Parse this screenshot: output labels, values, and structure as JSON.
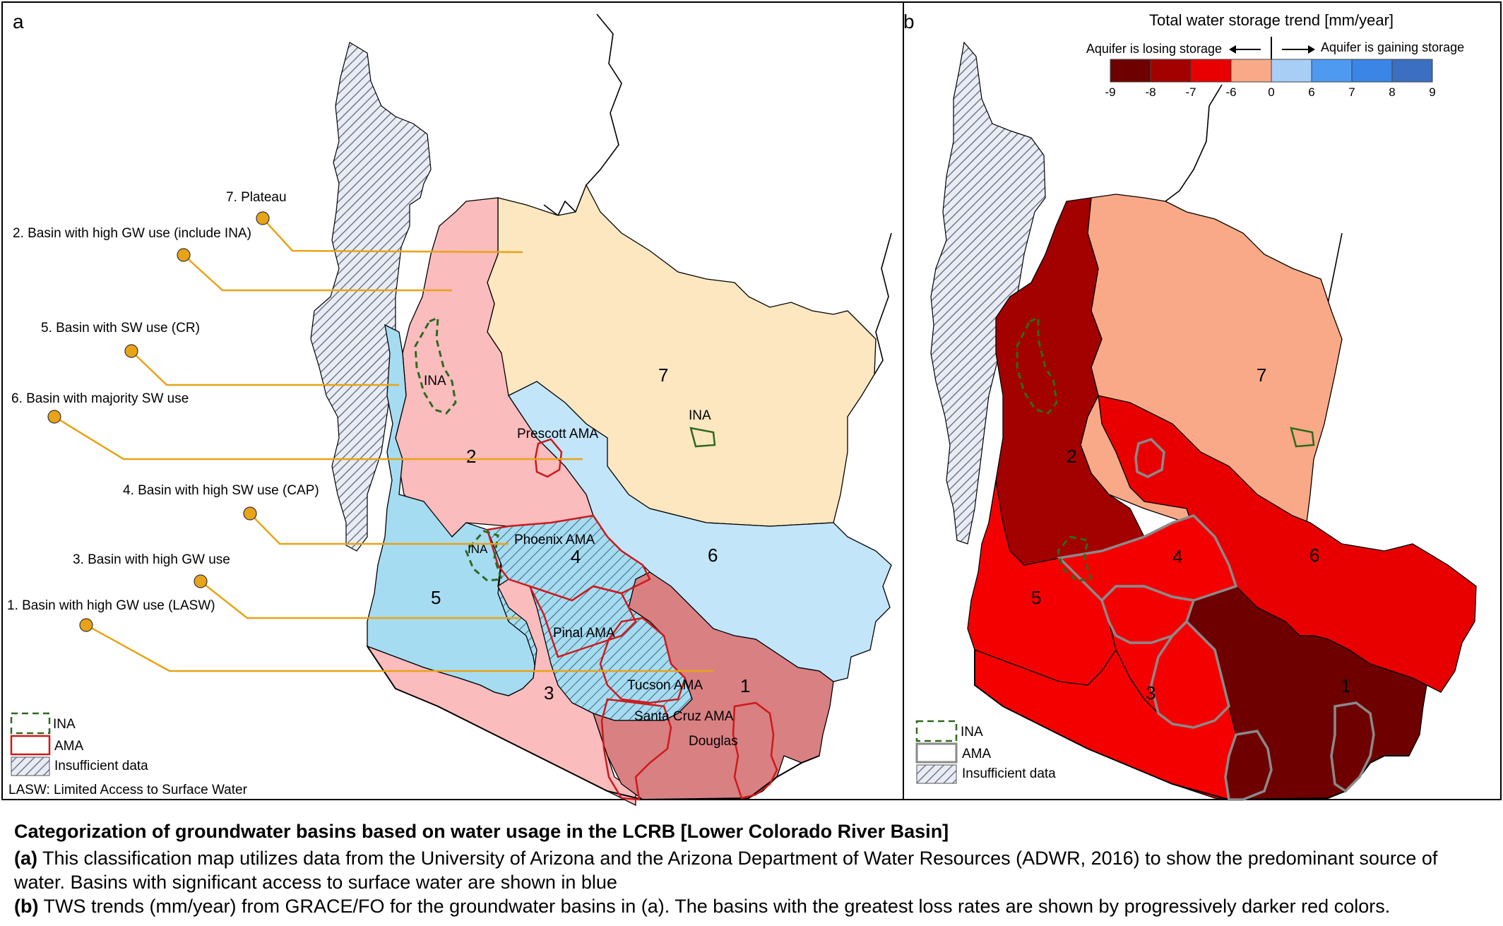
{
  "panel_a": {
    "label": "a",
    "legend_lines": [
      "7. Plateau",
      "2. Basin with high GW use (include INA)",
      "5. Basin with SW use (CR)",
      "6. Basin with majority SW use",
      "4. Basin with high SW use (CAP)",
      "3. Basin with high GW use",
      "1. Basin with high GW use (LASW)"
    ],
    "basin_numbers": [
      "7",
      "2",
      "6",
      "4",
      "5",
      "3",
      "1"
    ],
    "area_labels": {
      "ina_north": "INA",
      "ina_east": "INA",
      "ina_south": "INA",
      "prescott": "Prescott AMA",
      "phoenix": "Phoenix AMA",
      "pinal": "Pinal AMA",
      "tucson": "Tucson AMA",
      "santa_cruz": "Santa Cruz AMA",
      "douglas": "Douglas"
    },
    "key": {
      "ina": "INA",
      "ama": "AMA",
      "insufficient": "Insufficient data",
      "lasw": "LASW: Limited Access to Surface Water"
    },
    "colors": {
      "plateau": "#fde7c0",
      "basin2": "#fbbcbe",
      "basin3": "#fbbcbe",
      "basin1": "#d98083",
      "basin6": "#c2e5fa",
      "basin5": "#a6dcf2",
      "basin4": "#a6dcf2",
      "leader": "#e8a317",
      "ama_outline": "#cc1a1a",
      "ina_outline": "#2d6a1f"
    }
  },
  "panel_b": {
    "label": "b",
    "colorbar": {
      "title": "Total water storage trend [mm/year]",
      "left_note": "Aquifer is losing storage",
      "right_note": "Aquifer is gaining storage",
      "ticks": [
        "-9",
        "-8",
        "-7",
        "-6",
        "0",
        "6",
        "7",
        "8",
        "9"
      ],
      "colors": [
        "#6e0000",
        "#a30000",
        "#e80000",
        "#f9a987",
        "#a8cef6",
        "#4d9af0",
        "#3a85e6",
        "#3b6fc2"
      ]
    },
    "basin_numbers": [
      "7",
      "2",
      "6",
      "4",
      "5",
      "3",
      "1"
    ],
    "key": {
      "ina": "INA",
      "ama": "AMA",
      "insufficient": "Insufficient data"
    },
    "colors": {
      "plateau": "#f9a987",
      "basin2": "#a30000",
      "basin6": "#e80000",
      "basin4": "#f50000",
      "basin5": "#f50000",
      "basin3": "#f50000",
      "basin1": "#6e0000",
      "ama_outline": "#8a8a8a",
      "ina_outline": "#2d6a1f"
    }
  },
  "caption": {
    "title": "Categorization of groundwater basins based on water usage in the LCRB [Lower Colorado River Basin]",
    "a_label": "(a)",
    "a_text": "This classification map utilizes data from the University of Arizona and the Arizona Department of Water Resources (ADWR, 2016) to show the predominant source of water. Basins with significant access to surface water are shown in blue",
    "b_label": "(b)",
    "b_text": "TWS trends (mm/year) from GRACE/FO for the groundwater basins in (a). The basins with the greatest loss rates are shown by progressively darker red colors."
  }
}
